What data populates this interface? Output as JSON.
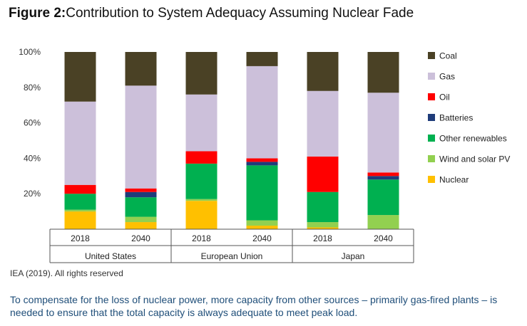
{
  "figure_label": "Figure 2:",
  "figure_title": "Contribution to System Adequacy Assuming Nuclear Fade",
  "source": "IEA (2019). All rights reserved",
  "caption": "To compensate for the loss of nuclear power, more capacity from other sources – primarily gas-fired plants – is needed to ensure that the total capacity is always adequate to meet peak load.",
  "chart_data": {
    "type": "bar",
    "stacked": true,
    "title": "",
    "xlabel": "",
    "ylabel": "",
    "ylim": [
      0,
      100
    ],
    "yticks": [
      0,
      20,
      40,
      60,
      80,
      100
    ],
    "ytick_labels": [
      "",
      "20%",
      "40%",
      "60%",
      "80%",
      "100%"
    ],
    "grid": false,
    "legend_position": "right",
    "groups": [
      {
        "name": "United States",
        "categories": [
          "2018",
          "2040"
        ]
      },
      {
        "name": "European Union",
        "categories": [
          "2018",
          "2040"
        ]
      },
      {
        "name": "Japan",
        "categories": [
          "2018",
          "2040"
        ]
      }
    ],
    "categories": [
      "2018",
      "2040",
      "2018",
      "2040",
      "2018",
      "2040"
    ],
    "series": [
      {
        "name": "Nuclear",
        "color": "#ffc000",
        "values": [
          10,
          4,
          16,
          2,
          1,
          0
        ]
      },
      {
        "name": "Wind and solar PV",
        "color": "#92d050",
        "values": [
          1,
          3,
          1,
          3,
          3,
          8
        ]
      },
      {
        "name": "Other renewables",
        "color": "#00b050",
        "values": [
          9,
          11,
          20,
          31,
          17,
          20
        ]
      },
      {
        "name": "Batteries",
        "color": "#1f3c7a",
        "values": [
          0,
          3,
          0,
          2,
          0,
          2
        ]
      },
      {
        "name": "Oil",
        "color": "#ff0000",
        "values": [
          5,
          2,
          7,
          2,
          20,
          2
        ]
      },
      {
        "name": "Gas",
        "color": "#ccc0da",
        "values": [
          47,
          58,
          32,
          52,
          37,
          45
        ]
      },
      {
        "name": "Coal",
        "color": "#4a4125",
        "values": [
          28,
          19,
          24,
          8,
          22,
          23
        ]
      }
    ]
  }
}
